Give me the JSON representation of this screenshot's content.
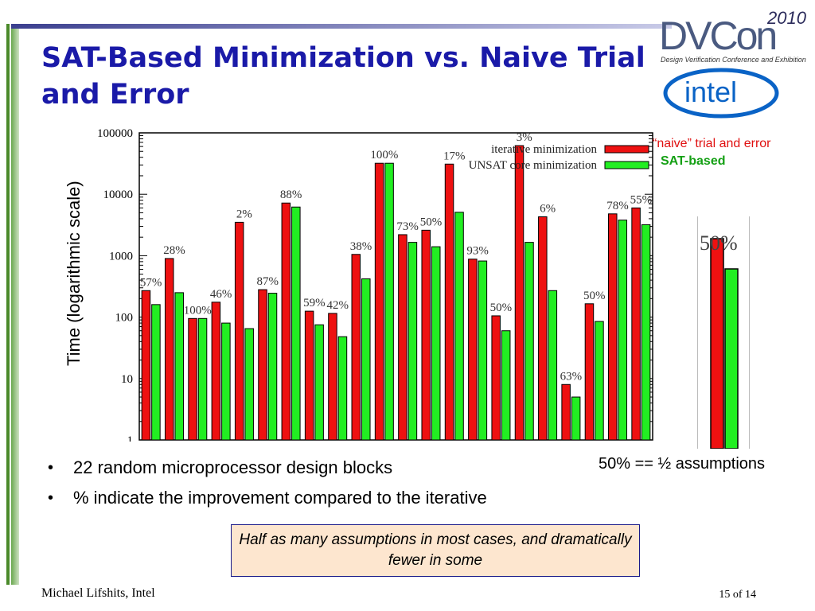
{
  "slide": {
    "title": "SAT-Based Minimization vs. Naive Trial and Error",
    "ylabel": "Time (logarithmic scale)",
    "legend_right": {
      "naive": "“naive” trial and error",
      "sat": "SAT-based"
    },
    "inset_label": "50%",
    "inset_note": "50% == ½ assumptions",
    "bullets": [
      "22 random microprocessor design blocks",
      "% indicate the improvement compared to the iterative"
    ],
    "callout": "Half as many assumptions in most cases, and dramatically fewer in some",
    "footer_author": "Michael Lifshits, Intel",
    "page_number": "15 of 14"
  },
  "logos": {
    "dvcon_text": "DVCon",
    "dvcon_year": "2010",
    "dvcon_sub": "Design Verification Conference and Exhibition",
    "intel_text": "intel"
  },
  "colors": {
    "red": "#ee1111",
    "green": "#22ee22",
    "title": "#1a1aa8"
  },
  "chart_data": {
    "type": "bar",
    "yscale": "log",
    "ylim": [
      1,
      100000
    ],
    "yticks": [
      "1",
      "10",
      "100",
      "1000",
      "10000",
      "100000"
    ],
    "series": [
      {
        "name": "iterative minimization",
        "values": [
          270,
          900,
          95,
          175,
          3500,
          280,
          7200,
          125,
          115,
          1050,
          32000,
          2200,
          2600,
          31000,
          880,
          105,
          62000,
          4300,
          8,
          165,
          4800,
          6000
        ]
      },
      {
        "name": "UNSAT core minimization",
        "values": [
          160,
          250,
          95,
          80,
          65,
          245,
          6200,
          75,
          48,
          420,
          32000,
          1650,
          1400,
          5100,
          820,
          60,
          1650,
          270,
          5,
          85,
          3800,
          3200
        ]
      }
    ],
    "labels": [
      "57%",
      "28%",
      "100%",
      "46%",
      "2%",
      "87%",
      "88%",
      "59%",
      "42%",
      "38%",
      "100%",
      "73%",
      "50%",
      "17%",
      "93%",
      "50%",
      "3%",
      "6%",
      "63%",
      "50%",
      "78%",
      "55%"
    ]
  }
}
